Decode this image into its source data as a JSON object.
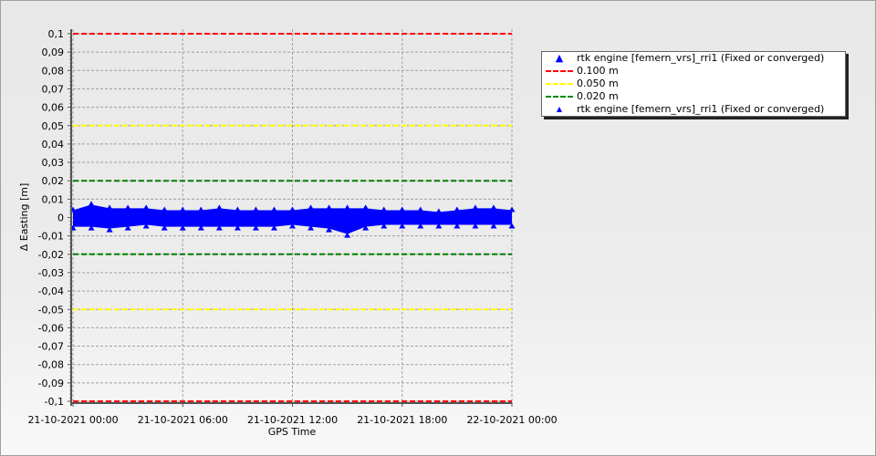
{
  "chart_data": {
    "type": "scatter",
    "xlabel": "GPS Time",
    "ylabel": "Δ Easting [m]",
    "ylim": [
      -0.1,
      0.1
    ],
    "xlim": [
      "21-10-2021 00:00",
      "22-10-2021 00:00"
    ],
    "grid": true,
    "legend_position": "right",
    "y_ticks": [
      "0,1",
      "0,09",
      "0,08",
      "0,07",
      "0,06",
      "0,05",
      "0,04",
      "0,03",
      "0,02",
      "0,01",
      "0",
      "-0,01",
      "-0,02",
      "-0,03",
      "-0,04",
      "-0,05",
      "-0,06",
      "-0,07",
      "-0,08",
      "-0,09",
      "-0,1"
    ],
    "x_ticks": [
      "21-10-2021 00:00",
      "21-10-2021 06:00",
      "21-10-2021 12:00",
      "21-10-2021 18:00",
      "22-10-2021 00:00"
    ],
    "reference_lines": [
      {
        "name": "0.100 m",
        "value": 0.1,
        "color": "#ff0000"
      },
      {
        "name": "0.050 m",
        "value": 0.05,
        "color": "#ffff00"
      },
      {
        "name": "0.020 m",
        "value": 0.02,
        "color": "#008000"
      }
    ],
    "series": [
      {
        "name": "rtk engine [femern_vrs]_rri1 (Fixed or converged)",
        "color": "#0000ff",
        "x_hours_from_start_label": "21-10-2021 00:00",
        "x": [
          0,
          1,
          2,
          3,
          4,
          5,
          6,
          7,
          8,
          9,
          10,
          11,
          12,
          13,
          14,
          15,
          16,
          17,
          18,
          19,
          20,
          21,
          22,
          23,
          24
        ],
        "y_max": [
          0.004,
          0.007,
          0.005,
          0.005,
          0.005,
          0.004,
          0.004,
          0.004,
          0.005,
          0.004,
          0.004,
          0.004,
          0.004,
          0.005,
          0.005,
          0.005,
          0.005,
          0.004,
          0.004,
          0.004,
          0.003,
          0.004,
          0.005,
          0.005,
          0.004
        ],
        "y_min": [
          -0.005,
          -0.005,
          -0.006,
          -0.005,
          -0.004,
          -0.005,
          -0.005,
          -0.005,
          -0.005,
          -0.005,
          -0.005,
          -0.005,
          -0.004,
          -0.005,
          -0.006,
          -0.009,
          -0.005,
          -0.004,
          -0.004,
          -0.004,
          -0.004,
          -0.004,
          -0.004,
          -0.004,
          -0.004
        ]
      }
    ]
  },
  "legend": {
    "items": [
      "rtk engine [femern_vrs]_rri1 (Fixed or converged)",
      "0.100 m",
      "0.050 m",
      "0.020 m",
      "rtk engine [femern_vrs]_rri1 (Fixed or converged)"
    ]
  }
}
